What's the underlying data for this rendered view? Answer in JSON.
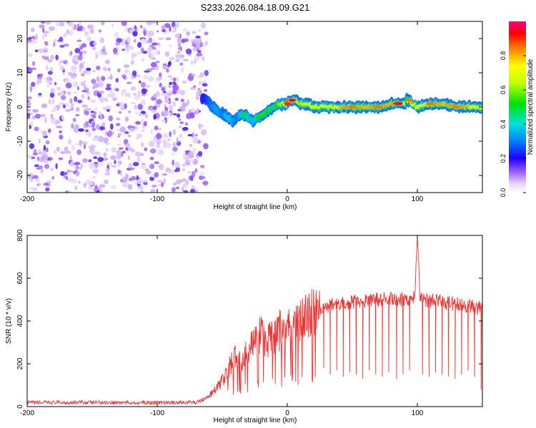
{
  "title": "S233.2026.084.18.09.G21",
  "chart_data": [
    {
      "type": "heatmap",
      "title": "S233.2026.084.18.09.G21",
      "xlabel": "Height of straight line (km)",
      "ylabel": "Frequency (Hz)",
      "xlim": [
        -200,
        150
      ],
      "ylim": [
        -25,
        25
      ],
      "x_ticks": [
        -200,
        -100,
        0,
        100
      ],
      "x_tick_labels": [
        "-200",
        "-100",
        "0",
        "100"
      ],
      "y_ticks": [
        -20,
        -10,
        0,
        10,
        20
      ],
      "y_tick_labels": [
        "-20",
        "-10",
        "0",
        "10",
        "20"
      ],
      "ridge": {
        "name": "dominant frequency",
        "x": [
          -68,
          -62,
          -58,
          -54,
          -50,
          -46,
          -42,
          -38,
          -34,
          -30,
          -26,
          -22,
          -18,
          -14,
          -10,
          -6,
          -2,
          0,
          2,
          4,
          6,
          8,
          10,
          15,
          20,
          30,
          40,
          50,
          60,
          70,
          80,
          84,
          86,
          90,
          92,
          94,
          96,
          100,
          110,
          120,
          130,
          140,
          150
        ],
        "y": [
          3,
          2,
          0,
          -1,
          -2,
          -3,
          -4,
          -3,
          -2,
          -3,
          -4,
          -3,
          -2,
          -1,
          0,
          1,
          1,
          1,
          2,
          2,
          2,
          2,
          1,
          1,
          0,
          0,
          0,
          0,
          0,
          0,
          1,
          1,
          1,
          1,
          2,
          2,
          1,
          0,
          1,
          1,
          0,
          0,
          0
        ],
        "amplitude": [
          0.15,
          0.25,
          0.3,
          0.35,
          0.3,
          0.4,
          0.35,
          0.3,
          0.5,
          0.45,
          0.4,
          0.5,
          0.55,
          0.5,
          0.45,
          0.6,
          0.7,
          0.9,
          0.85,
          0.95,
          0.8,
          0.7,
          0.6,
          0.8,
          0.7,
          0.75,
          0.8,
          0.85,
          0.8,
          0.85,
          0.8,
          0.9,
          0.95,
          0.8,
          0.5,
          0.85,
          0.8,
          0.7,
          0.85,
          0.8,
          0.85,
          0.8,
          0.75
        ]
      },
      "noise_region_x": [
        -200,
        -62
      ],
      "colorbar": {
        "label": "Normalized spectral amplitude",
        "range": [
          0,
          1
        ],
        "ticks": [
          0,
          0.2,
          0.4,
          0.6,
          0.8
        ],
        "tick_labels": [
          "0.0",
          "0.2",
          "0.4",
          "0.6",
          "0.8"
        ]
      }
    },
    {
      "type": "line",
      "xlabel": "Height of straight line (km)",
      "ylabel": "SNR (10 * v/v)",
      "xlim": [
        -200,
        150
      ],
      "ylim": [
        0,
        800
      ],
      "x_ticks": [
        -200,
        -100,
        0,
        100
      ],
      "x_tick_labels": [
        "-200",
        "-100",
        "0",
        "100"
      ],
      "y_ticks": [
        0,
        200,
        400,
        600,
        800
      ],
      "y_tick_labels": [
        "0",
        "200",
        "400",
        "600",
        "800"
      ],
      "series": [
        {
          "name": "SNR",
          "color": "#ee3333",
          "x": [
            -200,
            -150,
            -100,
            -70,
            -62,
            -55,
            -50,
            -45,
            -40,
            -35,
            -30,
            -25,
            -20,
            -15,
            -10,
            -5,
            0,
            5,
            10,
            15,
            20,
            25,
            30,
            40,
            50,
            60,
            70,
            80,
            90,
            95,
            98,
            100,
            102,
            105,
            110,
            120,
            130,
            140,
            145,
            150
          ],
          "y": [
            18,
            20,
            18,
            20,
            40,
            80,
            120,
            180,
            230,
            210,
            260,
            300,
            340,
            300,
            330,
            360,
            360,
            380,
            400,
            420,
            440,
            460,
            470,
            480,
            490,
            495,
            500,
            500,
            505,
            500,
            520,
            800,
            520,
            500,
            495,
            490,
            480,
            470,
            460,
            470
          ]
        }
      ],
      "dropouts_x": [
        28,
        33,
        38,
        43,
        48,
        53,
        58,
        63,
        68,
        73,
        78,
        84,
        89,
        94,
        104,
        109,
        114,
        119,
        124,
        129,
        134,
        139,
        144,
        149
      ],
      "dropouts_y": [
        180,
        150,
        170,
        140,
        160,
        150,
        130,
        170,
        150,
        140,
        160,
        130,
        150,
        170,
        150,
        140,
        160,
        150,
        140,
        130,
        150,
        170,
        140,
        80
      ]
    }
  ]
}
